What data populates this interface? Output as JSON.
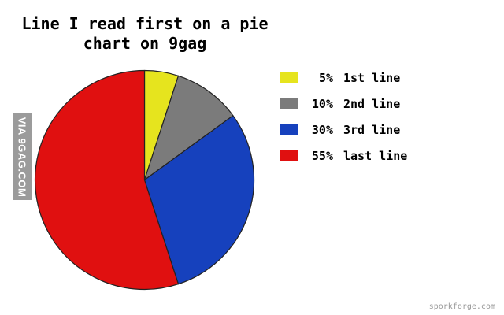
{
  "title": {
    "line1": "Line I read first on a pie",
    "line2": "chart on 9gag"
  },
  "watermark": {
    "text": "VIA 9GAG.COM",
    "bg_color": "#9b9b9b",
    "text_color": "#ffffff"
  },
  "footer": {
    "credit": "sporkforge.com",
    "color": "#999999"
  },
  "chart_data": {
    "type": "pie",
    "title": "Line I read first on a pie chart on 9gag",
    "start_angle_deg": 0,
    "direction": "clockwise",
    "legend_position": "right",
    "outline_color": "#222222",
    "slices": [
      {
        "label": "1st line",
        "percent": "5%",
        "value": 5,
        "color": "#e6e41e"
      },
      {
        "label": "2nd line",
        "percent": "10%",
        "value": 10,
        "color": "#7b7b7b"
      },
      {
        "label": "3rd line",
        "percent": "30%",
        "value": 30,
        "color": "#1641bd"
      },
      {
        "label": "last line",
        "percent": "55%",
        "value": 55,
        "color": "#e01010"
      }
    ]
  }
}
